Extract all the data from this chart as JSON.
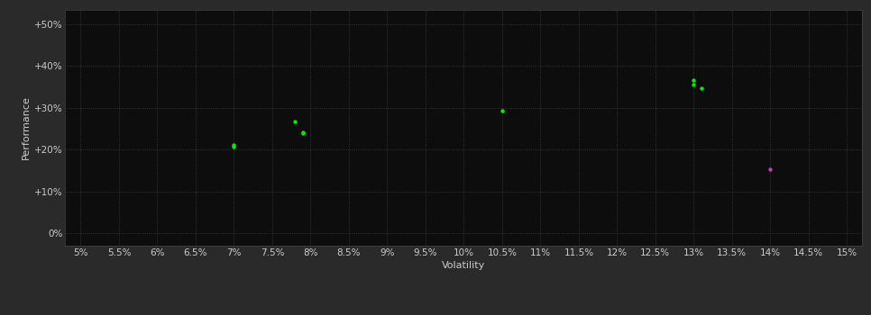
{
  "background_color": "#2a2a2a",
  "plot_bg_color": "#0d0d0d",
  "grid_color": "#404040",
  "xlabel": "Volatility",
  "ylabel": "Performance",
  "x_ticks": [
    0.05,
    0.055,
    0.06,
    0.065,
    0.07,
    0.075,
    0.08,
    0.085,
    0.09,
    0.095,
    0.1,
    0.105,
    0.11,
    0.115,
    0.12,
    0.125,
    0.13,
    0.135,
    0.14,
    0.145,
    0.15
  ],
  "x_tick_labels": [
    "5%",
    "5.5%",
    "6%",
    "6.5%",
    "7%",
    "7.5%",
    "8%",
    "8.5%",
    "9%",
    "9.5%",
    "10%",
    "10.5%",
    "11%",
    "11.5%",
    "12%",
    "12.5%",
    "13%",
    "13.5%",
    "14%",
    "14.5%",
    "15%"
  ],
  "y_ticks": [
    0.0,
    0.1,
    0.2,
    0.3,
    0.4,
    0.5
  ],
  "y_tick_labels": [
    "0%",
    "+10%",
    "+20%",
    "+30%",
    "+40%",
    "+50%"
  ],
  "xlim": [
    0.048,
    0.152
  ],
  "ylim": [
    -0.03,
    0.535
  ],
  "green_points": [
    [
      0.07,
      0.211
    ],
    [
      0.07,
      0.206
    ],
    [
      0.078,
      0.268
    ],
    [
      0.079,
      0.242
    ],
    [
      0.079,
      0.238
    ],
    [
      0.105,
      0.293
    ],
    [
      0.13,
      0.365
    ],
    [
      0.13,
      0.356
    ],
    [
      0.131,
      0.347
    ]
  ],
  "magenta_points": [
    [
      0.14,
      0.152
    ]
  ],
  "green_color": "#00ee00",
  "magenta_color": "#bb44bb",
  "dot_size": 10,
  "label_fontsize": 8,
  "tick_fontsize": 7.5,
  "tick_color": "#cccccc",
  "label_color": "#cccccc",
  "spine_color": "#444444"
}
